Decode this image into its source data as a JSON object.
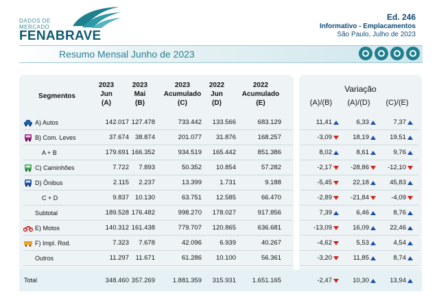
{
  "header": {
    "logo_line1": "DADOS DE",
    "logo_line2": "MERCADO",
    "logo_main": "FENABRAVE",
    "edition": "Ed. 246",
    "info_title": "Informativo - Emplacamentos",
    "info_date": "São Paulo, Julho de 2023"
  },
  "banner": {
    "title": "Resumo Mensal Junho de 2023"
  },
  "table_header": {
    "segment": "Segmentos",
    "cols": [
      {
        "l1": "2023",
        "l2": "Jun",
        "l3": "(A)"
      },
      {
        "l1": "2023",
        "l2": "Mai",
        "l3": "(B)"
      },
      {
        "l1": "2023",
        "l2": "Acumulado",
        "l3": "(C)"
      },
      {
        "l1": "2022",
        "l2": "Jun",
        "l3": "(D)"
      },
      {
        "l1": "2022",
        "l2": "Acumulado",
        "l3": "(E)"
      }
    ],
    "variation_title": "Variação",
    "variation_cols": [
      "(A)/(B)",
      "(A)/(D)",
      "(C)/(E)"
    ]
  },
  "rows": [
    {
      "label": "A) Autos",
      "icon": "car-icon",
      "values": [
        "142.017",
        "127.478",
        "733.442",
        "133.566",
        "683.129"
      ],
      "var": [
        "11,41",
        "6,33",
        "7,37"
      ],
      "dir": [
        "up",
        "up",
        "up"
      ]
    },
    {
      "label": "B) Com. Leves",
      "icon": "van-icon",
      "values": [
        "37.674",
        "38.874",
        "201.077",
        "31.876",
        "168.257"
      ],
      "var": [
        "-3,09",
        "18,19",
        "19,51"
      ],
      "dir": [
        "down",
        "up",
        "up"
      ]
    },
    {
      "label": "A + B",
      "icon": "",
      "values": [
        "179.691",
        "166.352",
        "934.519",
        "165.442",
        "851.386"
      ],
      "var": [
        "8,02",
        "8,61",
        "9,76"
      ],
      "dir": [
        "up",
        "up",
        "up"
      ]
    },
    {
      "label": "C) Caminhões",
      "icon": "truck-icon",
      "values": [
        "7.722",
        "7.893",
        "50.352",
        "10.854",
        "57.282"
      ],
      "var": [
        "-2,17",
        "-28,86",
        "-12,10"
      ],
      "dir": [
        "down",
        "down",
        "down"
      ]
    },
    {
      "label": "D) Ônibus",
      "icon": "bus-icon",
      "values": [
        "2.115",
        "2.237",
        "13.399",
        "1.731",
        "9.188"
      ],
      "var": [
        "-5,45",
        "22,18",
        "45,83"
      ],
      "dir": [
        "down",
        "up",
        "up"
      ]
    },
    {
      "label": "C + D",
      "icon": "",
      "values": [
        "9.837",
        "10.130",
        "63.751",
        "12.585",
        "66.470"
      ],
      "var": [
        "-2,89",
        "-21,84",
        "-4,09"
      ],
      "dir": [
        "down",
        "down",
        "down"
      ]
    },
    {
      "label": "Subtotal",
      "icon": "",
      "values": [
        "189.528",
        "176.482",
        "998.270",
        "178.027",
        "917.856"
      ],
      "var": [
        "7,39",
        "6,46",
        "8,76"
      ],
      "dir": [
        "up",
        "up",
        "up"
      ]
    },
    {
      "label": "E) Motos",
      "icon": "motorcycle-icon",
      "values": [
        "140.312",
        "161.438",
        "779.707",
        "120.865",
        "636.681"
      ],
      "var": [
        "-13,09",
        "16,09",
        "22,46"
      ],
      "dir": [
        "down",
        "up",
        "up"
      ]
    },
    {
      "label": "F) Impl. Rod.",
      "icon": "trailer-icon",
      "values": [
        "7.323",
        "7.678",
        "42.096",
        "6.939",
        "40.267"
      ],
      "var": [
        "-4,62",
        "5,53",
        "4,54"
      ],
      "dir": [
        "down",
        "up",
        "up"
      ]
    },
    {
      "label": "Outros",
      "icon": "",
      "values": [
        "11.297",
        "11.671",
        "61.286",
        "10.100",
        "56.361"
      ],
      "var": [
        "-3,20",
        "11,85",
        "8,74"
      ],
      "dir": [
        "down",
        "up",
        "up"
      ]
    }
  ],
  "total": {
    "label": "Total",
    "values": [
      "348.460",
      "357.269",
      "1.881.359",
      "315.931",
      "1.651.165"
    ],
    "var": [
      "-2,47",
      "10,30",
      "13,94"
    ],
    "dir": [
      "down",
      "up",
      "up"
    ]
  },
  "colors": {
    "brand": "#0f5a6e",
    "accent": "#2a7e92",
    "positive_arrow": "#1b4fa6",
    "negative": "#d1221c",
    "panel": "#eef3f5"
  }
}
